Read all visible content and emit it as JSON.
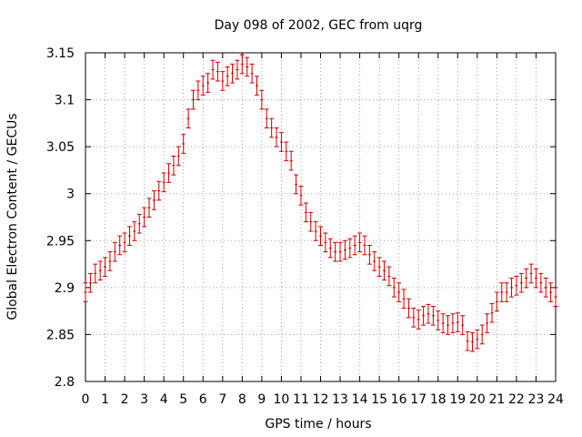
{
  "chart_data": {
    "type": "scatter",
    "title": "Day 098 of 2002, GEC from uqrg",
    "xlabel": "GPS time / hours",
    "ylabel": "Global Electron Content / GECUs",
    "xlim": [
      0,
      24
    ],
    "ylim": [
      2.8,
      3.15
    ],
    "grid": true,
    "x_ticks": [
      0,
      1,
      2,
      3,
      4,
      5,
      6,
      7,
      8,
      9,
      10,
      11,
      12,
      13,
      14,
      15,
      16,
      17,
      18,
      19,
      20,
      21,
      22,
      23,
      24
    ],
    "y_ticks": [
      2.8,
      2.85,
      2.9,
      2.95,
      3.0,
      3.05,
      3.1,
      3.15
    ],
    "y_tick_labels": [
      "2.8",
      "2.85",
      "2.9",
      "2.95",
      "3",
      "3.05",
      "3.1",
      "3.15"
    ],
    "color": "#cc0000",
    "error_halfwidth": 0.01,
    "series": [
      {
        "x": [
          0,
          0.25,
          0.5,
          0.75,
          1,
          1.25,
          1.5,
          1.75,
          2,
          2.25,
          2.5,
          2.75,
          3,
          3.25,
          3.5,
          3.75,
          4,
          4.25,
          4.5,
          4.75,
          5,
          5.25,
          5.5,
          5.75,
          6,
          6.25,
          6.5,
          6.75,
          7,
          7.25,
          7.5,
          7.75,
          8,
          8.25,
          8.5,
          8.75,
          9,
          9.25,
          9.5,
          9.75,
          10,
          10.25,
          10.5,
          10.75,
          11,
          11.25,
          11.5,
          11.75,
          12,
          12.25,
          12.5,
          12.75,
          13,
          13.25,
          13.5,
          13.75,
          14,
          14.25,
          14.5,
          14.75,
          15,
          15.25,
          15.5,
          15.75,
          16,
          16.25,
          16.5,
          16.75,
          17,
          17.25,
          17.5,
          17.75,
          18,
          18.25,
          18.5,
          18.75,
          19,
          19.25,
          19.5,
          19.75,
          20,
          20.25,
          20.5,
          20.75,
          21,
          21.25,
          21.5,
          21.75,
          22,
          22.25,
          22.5,
          22.75,
          23,
          23.25,
          23.5,
          23.75,
          24
        ],
        "y": [
          2.895,
          2.905,
          2.915,
          2.918,
          2.922,
          2.928,
          2.938,
          2.945,
          2.948,
          2.955,
          2.96,
          2.968,
          2.975,
          2.985,
          2.993,
          3.003,
          3.012,
          3.022,
          3.03,
          3.04,
          3.053,
          3.08,
          3.1,
          3.11,
          3.115,
          3.118,
          3.132,
          3.13,
          3.12,
          3.125,
          3.128,
          3.132,
          3.138,
          3.135,
          3.128,
          3.115,
          3.1,
          3.08,
          3.07,
          3.06,
          3.055,
          3.045,
          3.035,
          3.01,
          2.998,
          2.98,
          2.97,
          2.96,
          2.955,
          2.948,
          2.942,
          2.938,
          2.938,
          2.94,
          2.942,
          2.945,
          2.948,
          2.945,
          2.935,
          2.928,
          2.922,
          2.918,
          2.912,
          2.9,
          2.895,
          2.888,
          2.878,
          2.868,
          2.866,
          2.87,
          2.872,
          2.87,
          2.865,
          2.862,
          2.86,
          2.862,
          2.863,
          2.86,
          2.843,
          2.842,
          2.845,
          2.85,
          2.862,
          2.873,
          2.885,
          2.895,
          2.895,
          2.9,
          2.902,
          2.905,
          2.91,
          2.915,
          2.91,
          2.905,
          2.9,
          2.895,
          2.89
        ]
      }
    ]
  }
}
